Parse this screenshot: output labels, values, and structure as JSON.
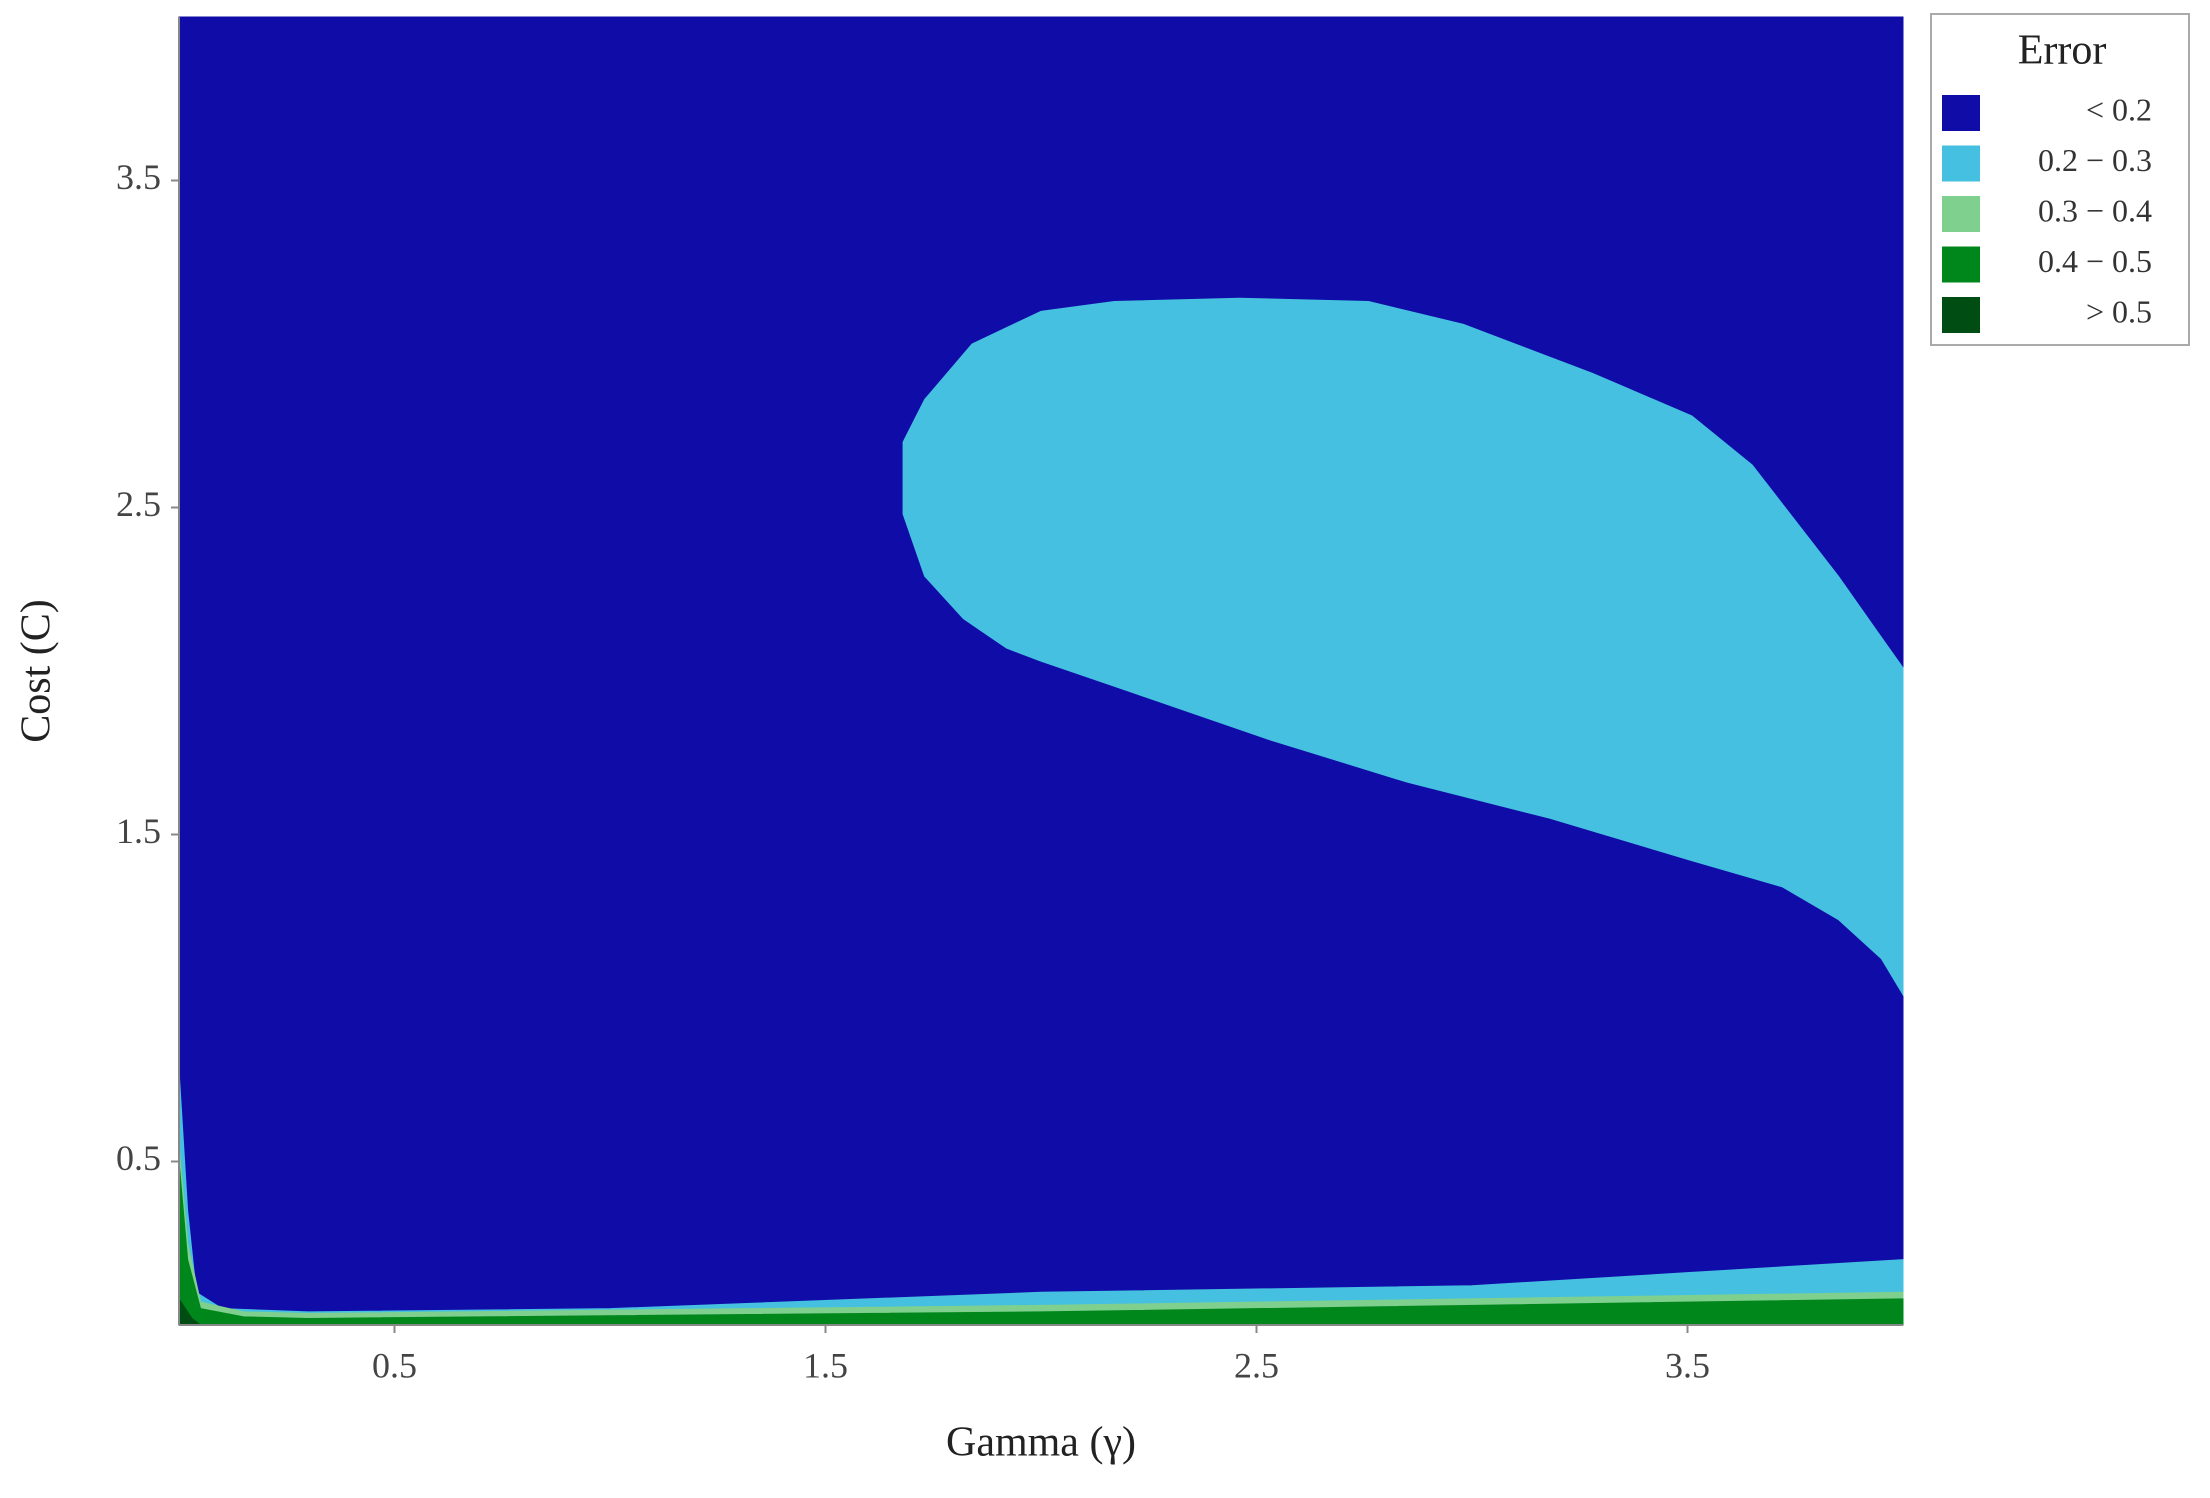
{
  "chart_data": {
    "type": "contour",
    "xlabel": "Gamma (γ)",
    "ylabel": "Cost (C)",
    "xlim": [
      0,
      4
    ],
    "ylim": [
      0,
      4
    ],
    "xticks": [
      0.5,
      1.5,
      2.5,
      3.5
    ],
    "yticks": [
      0.5,
      1.5,
      2.5,
      3.5
    ],
    "grid": false,
    "legend_title": "Error",
    "legend_position": "outside right",
    "series": [
      {
        "name": "< 0.2",
        "color": "#100ca8",
        "polygons": [
          {
            "x": [
              0,
              4,
              4,
              0
            ],
            "y": [
              0,
              0,
              4,
              4
            ]
          }
        ]
      },
      {
        "name": "0.2 − 0.3",
        "color": "#45c0e0",
        "polygons": [
          {
            "x": [
              1.68,
              1.73,
              1.84,
              2.0,
              2.17,
              2.46,
              2.76,
              2.98,
              3.28,
              3.51,
              3.65,
              3.85,
              3.93,
              4.0,
              4.0,
              3.95,
              3.85,
              3.72,
              3.51,
              3.18,
              2.85,
              2.53,
              2.2,
              2.0,
              1.92,
              1.82,
              1.73,
              1.68
            ],
            "y": [
              2.7,
              2.83,
              3.0,
              3.1,
              3.13,
              3.14,
              3.13,
              3.06,
              2.91,
              2.78,
              2.63,
              2.29,
              2.14,
              2.01,
              1.01,
              1.12,
              1.24,
              1.34,
              1.42,
              1.55,
              1.66,
              1.79,
              1.94,
              2.03,
              2.07,
              2.16,
              2.29,
              2.48
            ]
          },
          {
            "x": [
              0,
              0.02,
              0.04,
              0.1,
              0.3,
              1,
              2,
              3,
              3.5,
              4,
              4,
              0
            ],
            "y": [
              0.78,
              0.35,
              0.1,
              0.05,
              0.04,
              0.05,
              0.1,
              0.12,
              0.16,
              0.2,
              0,
              0
            ]
          }
        ]
      },
      {
        "name": "0.3 − 0.4",
        "color": "#7fd08e",
        "polygons": [
          {
            "x": [
              0,
              0.02,
              0.05,
              0.15,
              0.3,
              2,
              4,
              4,
              0
            ],
            "y": [
              0.55,
              0.25,
              0.07,
              0.04,
              0.035,
              0.06,
              0.1,
              0,
              0
            ]
          }
        ]
      },
      {
        "name": "0.4 − 0.5",
        "color": "#00871c",
        "polygons": [
          {
            "x": [
              0,
              0.02,
              0.05,
              0.15,
              0.3,
              2,
              4,
              4,
              0
            ],
            "y": [
              0.5,
              0.2,
              0.05,
              0.025,
              0.02,
              0.04,
              0.08,
              0,
              0
            ]
          }
        ]
      },
      {
        "name": "> 0.5",
        "color": "#004d14",
        "polygons": [
          {
            "x": [
              0,
              0.03,
              0.05,
              0
            ],
            "y": [
              0.08,
              0.02,
              0,
              0
            ]
          }
        ]
      }
    ]
  }
}
